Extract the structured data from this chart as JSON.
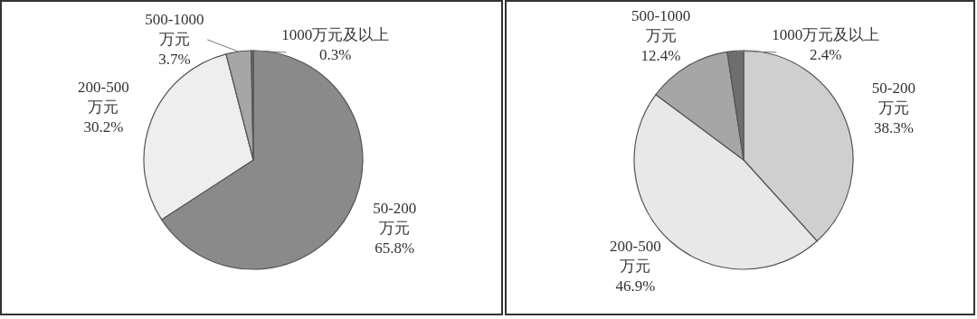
{
  "chart_data": [
    {
      "type": "pie",
      "categories": [
        "50-200万元",
        "200-500万元",
        "500-1000万元",
        "1000万元及以上"
      ],
      "values": [
        65.8,
        30.2,
        3.7,
        0.3
      ],
      "value_labels": [
        "65.8%",
        "30.2%",
        "3.7%",
        "0.3%"
      ],
      "colors": [
        "#8a8a8a",
        "#eeeeee",
        "#a6a6a6",
        "#6e6e6e"
      ]
    },
    {
      "type": "pie",
      "categories": [
        "50-200万元",
        "200-500万元",
        "500-1000万元",
        "1000万元及以上"
      ],
      "values": [
        38.3,
        46.9,
        12.4,
        2.4
      ],
      "value_labels": [
        "38.3%",
        "46.9%",
        "12.4%",
        "2.4%"
      ],
      "colors": [
        "#cfcfcf",
        "#e8e8e8",
        "#a6a6a6",
        "#6e6e6e"
      ]
    }
  ]
}
